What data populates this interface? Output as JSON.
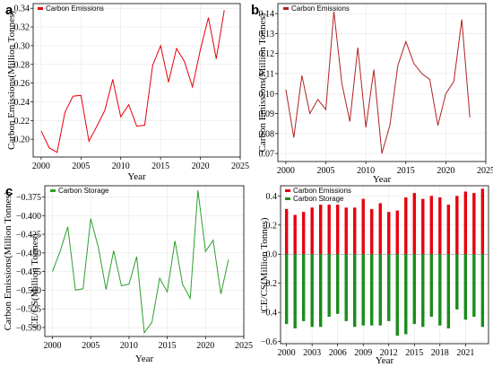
{
  "chart_data": [
    {
      "type": "line",
      "panel_label": "a",
      "xlabel": "Year",
      "ylabel": "Carbon Emissions(Million Tonnes)",
      "xlim": [
        1999,
        2025
      ],
      "ylim": [
        0.181,
        0.345
      ],
      "xticks": [
        2000,
        2005,
        2010,
        2015,
        2020,
        2025
      ],
      "yticks": [
        0.2,
        0.22,
        0.24,
        0.26,
        0.28,
        0.3,
        0.32,
        0.34
      ],
      "ytick_labels": [
        "0.20",
        "0.22",
        "0.24",
        "0.26",
        "0.28",
        "0.30",
        "0.32",
        "0.34"
      ],
      "legend_position": "top-left",
      "grid": true,
      "series": [
        {
          "name": "Carbon Emissions",
          "color": "#e8000b",
          "x": [
            2000,
            2001,
            2002,
            2003,
            2004,
            2005,
            2006,
            2007,
            2008,
            2009,
            2010,
            2011,
            2012,
            2013,
            2014,
            2015,
            2016,
            2017,
            2018,
            2019,
            2020,
            2021,
            2022,
            2023
          ],
          "values": [
            0.209,
            0.191,
            0.186,
            0.229,
            0.246,
            0.247,
            0.198,
            0.214,
            0.231,
            0.264,
            0.224,
            0.237,
            0.214,
            0.215,
            0.279,
            0.3,
            0.261,
            0.297,
            0.283,
            0.256,
            0.296,
            0.33,
            0.286,
            0.338
          ]
        }
      ]
    },
    {
      "type": "line",
      "panel_label": "b",
      "xlabel": "Year",
      "ylabel": "Carbon Emissions(Million Tonnes)",
      "xlim": [
        1999,
        2025
      ],
      "ylim": [
        0.066,
        0.145
      ],
      "xticks": [
        2000,
        2005,
        2010,
        2015,
        2020,
        2025
      ],
      "yticks": [
        0.07,
        0.08,
        0.09,
        0.1,
        0.11,
        0.12,
        0.13,
        0.14
      ],
      "ytick_labels": [
        "0.07",
        "0.08",
        "0.09",
        "0.10",
        "0.11",
        "0.12",
        "0.13",
        "0.14"
      ],
      "legend_position": "top-left",
      "grid": true,
      "series": [
        {
          "name": "Carbon Emissions",
          "color": "#b22222",
          "x": [
            2000,
            2001,
            2002,
            2003,
            2004,
            2005,
            2006,
            2007,
            2008,
            2009,
            2010,
            2011,
            2012,
            2013,
            2014,
            2015,
            2016,
            2017,
            2018,
            2019,
            2020,
            2021,
            2022,
            2023
          ],
          "values": [
            0.102,
            0.078,
            0.109,
            0.09,
            0.097,
            0.092,
            0.141,
            0.105,
            0.086,
            0.123,
            0.083,
            0.112,
            0.07,
            0.084,
            0.114,
            0.126,
            0.115,
            0.11,
            0.107,
            0.084,
            0.1,
            0.106,
            0.137,
            0.088
          ]
        }
      ]
    },
    {
      "type": "line",
      "panel_label": "c",
      "xlabel": "Year",
      "ylabel": "Carbon Emissions(Million Tonnes)",
      "ylabel_overlay": "CE/CS(Million Tonnes)",
      "xlim": [
        1999,
        2025
      ],
      "ylim": [
        -0.562,
        -0.36
      ],
      "xticks": [
        2000,
        2005,
        2010,
        2015,
        2020,
        2025
      ],
      "yticks": [
        -0.375,
        -0.4,
        -0.425,
        -0.45,
        -0.475,
        -0.5,
        -0.525,
        -0.55
      ],
      "ytick_labels": [
        "−0.375",
        "−0.400",
        "−0.425",
        "−0.450",
        "−0.475",
        "−0.500",
        "−0.525",
        "−0.550"
      ],
      "legend_position": "top-left",
      "grid": true,
      "series": [
        {
          "name": "Carbon Storage",
          "color": "#2ca02c",
          "x": [
            2000,
            2001,
            2002,
            2003,
            2004,
            2005,
            2006,
            2007,
            2008,
            2009,
            2010,
            2011,
            2012,
            2013,
            2014,
            2015,
            2016,
            2017,
            2018,
            2019,
            2020,
            2021,
            2022,
            2023
          ],
          "values": [
            -0.475,
            -0.448,
            -0.415,
            -0.5,
            -0.498,
            -0.404,
            -0.443,
            -0.499,
            -0.447,
            -0.494,
            -0.492,
            -0.455,
            -0.557,
            -0.543,
            -0.484,
            -0.502,
            -0.434,
            -0.492,
            -0.511,
            -0.366,
            -0.448,
            -0.433,
            -0.505,
            -0.459
          ]
        }
      ]
    },
    {
      "type": "bar",
      "panel_label": "d",
      "xlabel": "Year",
      "ylabel": "CE/CS(Million Tonnes)",
      "xlim": [
        1999.3,
        2023.7
      ],
      "ylim": [
        -0.615,
        0.47
      ],
      "xticks": [
        2000,
        2003,
        2006,
        2009,
        2012,
        2015,
        2018,
        2021
      ],
      "yticks": [
        0.4,
        0.2,
        0.0,
        -0.2,
        -0.4,
        -0.6
      ],
      "ytick_labels": [
        "0.4",
        "0.2",
        "0.0",
        "−0.2",
        "−0.4",
        "−0.6"
      ],
      "legend_position": "top-left",
      "grid": true,
      "categories": [
        2000,
        2001,
        2002,
        2003,
        2004,
        2005,
        2006,
        2007,
        2008,
        2009,
        2010,
        2011,
        2012,
        2013,
        2014,
        2015,
        2016,
        2017,
        2018,
        2019,
        2020,
        2021,
        2022,
        2023
      ],
      "series": [
        {
          "name": "Carbon Emissions",
          "color": "#e8000b",
          "values": [
            0.31,
            0.27,
            0.29,
            0.32,
            0.34,
            0.34,
            0.34,
            0.32,
            0.32,
            0.38,
            0.31,
            0.35,
            0.29,
            0.3,
            0.39,
            0.42,
            0.38,
            0.4,
            0.39,
            0.34,
            0.4,
            0.43,
            0.42,
            0.45
          ]
        },
        {
          "name": "Carbon Storage",
          "color": "#1a8c1a",
          "values": [
            -0.48,
            -0.51,
            -0.46,
            -0.5,
            -0.5,
            -0.43,
            -0.41,
            -0.46,
            -0.5,
            -0.49,
            -0.49,
            -0.49,
            -0.46,
            -0.56,
            -0.55,
            -0.48,
            -0.5,
            -0.43,
            -0.49,
            -0.51,
            -0.38,
            -0.45,
            -0.43,
            -0.5
          ]
        }
      ]
    }
  ]
}
